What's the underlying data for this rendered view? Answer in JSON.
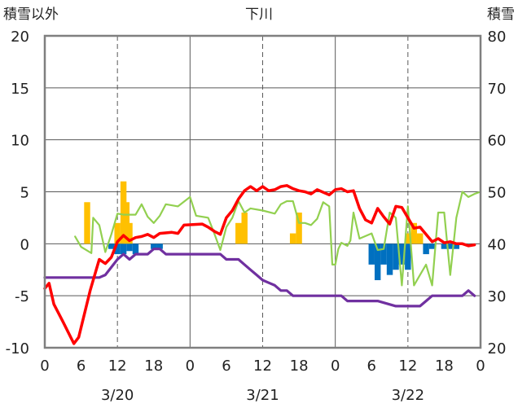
{
  "chart_data": {
    "type": "line",
    "title": "下川",
    "left_axis_label": "積雪以外",
    "right_axis_label": "積雪",
    "y_left": {
      "min": -10,
      "max": 20,
      "ticks": [
        20,
        15,
        10,
        5,
        0,
        -5,
        -10
      ]
    },
    "y_right": {
      "min": 20,
      "max": 80,
      "ticks": [
        80,
        70,
        60,
        50,
        40,
        30,
        20
      ]
    },
    "x": {
      "min": 0,
      "max": 72
    },
    "hour_ticks": [
      {
        "x": 0,
        "label": "0"
      },
      {
        "x": 6,
        "label": "6"
      },
      {
        "x": 12,
        "label": "12"
      },
      {
        "x": 18,
        "label": "18"
      },
      {
        "x": 24,
        "label": "0"
      },
      {
        "x": 30,
        "label": "6"
      },
      {
        "x": 36,
        "label": "12"
      },
      {
        "x": 42,
        "label": "18"
      },
      {
        "x": 48,
        "label": "0"
      },
      {
        "x": 54,
        "label": "6"
      },
      {
        "x": 60,
        "label": "12"
      },
      {
        "x": 66,
        "label": "18"
      },
      {
        "x": 72,
        "label": "0"
      }
    ],
    "date_labels": [
      {
        "x": 12,
        "label": "3/20"
      },
      {
        "x": 36,
        "label": "3/21"
      },
      {
        "x": 60,
        "label": "3/22"
      }
    ],
    "midnight_lines": [
      24,
      48
    ],
    "noon_lines": [
      12,
      36,
      60
    ],
    "snow_depth": [
      [
        0,
        33.5
      ],
      [
        3,
        33.5
      ],
      [
        6,
        33.5
      ],
      [
        9,
        33.5
      ],
      [
        10,
        34
      ],
      [
        11,
        35.5
      ],
      [
        12,
        37
      ],
      [
        13,
        38
      ],
      [
        14,
        37
      ],
      [
        15,
        38
      ],
      [
        16,
        38
      ],
      [
        17,
        38
      ],
      [
        18,
        39
      ],
      [
        19,
        39
      ],
      [
        20,
        38
      ],
      [
        22,
        38
      ],
      [
        24,
        38
      ],
      [
        27,
        38
      ],
      [
        29,
        38
      ],
      [
        30,
        37
      ],
      [
        32,
        37
      ],
      [
        33,
        36
      ],
      [
        34,
        35
      ],
      [
        35,
        34
      ],
      [
        36,
        33
      ],
      [
        37,
        32.5
      ],
      [
        38,
        32
      ],
      [
        39,
        31
      ],
      [
        40,
        31
      ],
      [
        41,
        30
      ],
      [
        42,
        30
      ],
      [
        45,
        30
      ],
      [
        48,
        30
      ],
      [
        49,
        30
      ],
      [
        50,
        29
      ],
      [
        55,
        29
      ],
      [
        58,
        28
      ],
      [
        60,
        28
      ],
      [
        62,
        28
      ],
      [
        63,
        29
      ],
      [
        64,
        30
      ],
      [
        67,
        30
      ],
      [
        69,
        30
      ],
      [
        70,
        31
      ],
      [
        71,
        30
      ]
    ],
    "temperature": [
      [
        0,
        -4.3
      ],
      [
        0.7,
        -3.8
      ],
      [
        1.5,
        -5.8
      ],
      [
        3,
        -7.5
      ],
      [
        4.8,
        -9.6
      ],
      [
        5.6,
        -9
      ],
      [
        7.5,
        -4.5
      ],
      [
        9,
        -1.5
      ],
      [
        10,
        -1.9
      ],
      [
        11,
        -1.3
      ],
      [
        12,
        0.2
      ],
      [
        13,
        0.8
      ],
      [
        14,
        0.3
      ],
      [
        15,
        0.6
      ],
      [
        16,
        0.7
      ],
      [
        17,
        0.9
      ],
      [
        18,
        0.6
      ],
      [
        19,
        1
      ],
      [
        21,
        1.1
      ],
      [
        22,
        1
      ],
      [
        23,
        1.8
      ],
      [
        26,
        1.9
      ],
      [
        27,
        1.6
      ],
      [
        28,
        1.2
      ],
      [
        29,
        0.9
      ],
      [
        30,
        2.5
      ],
      [
        31,
        3.2
      ],
      [
        32,
        4.3
      ],
      [
        33,
        5.1
      ],
      [
        34,
        5.5
      ],
      [
        35,
        5.1
      ],
      [
        36,
        5.5
      ],
      [
        37,
        5.1
      ],
      [
        38,
        5.2
      ],
      [
        39,
        5.5
      ],
      [
        40,
        5.6
      ],
      [
        41,
        5.3
      ],
      [
        42,
        5.1
      ],
      [
        43,
        5
      ],
      [
        44,
        4.8
      ],
      [
        45,
        5.2
      ],
      [
        47,
        4.7
      ],
      [
        48,
        5.2
      ],
      [
        49,
        5.3
      ],
      [
        50,
        5
      ],
      [
        51,
        5.1
      ],
      [
        52,
        3.4
      ],
      [
        53,
        2.3
      ],
      [
        54,
        2
      ],
      [
        55,
        3.4
      ],
      [
        56,
        2.6
      ],
      [
        57,
        1.9
      ],
      [
        58,
        3.6
      ],
      [
        59,
        3.5
      ],
      [
        60,
        2.5
      ],
      [
        61,
        1.5
      ],
      [
        62,
        1.6
      ],
      [
        63,
        0.9
      ],
      [
        64,
        0.2
      ],
      [
        65,
        0.5
      ],
      [
        66,
        0.1
      ],
      [
        67,
        0.2
      ],
      [
        68,
        0
      ],
      [
        69,
        0
      ],
      [
        70,
        -0.2
      ],
      [
        71,
        -0.1
      ]
    ],
    "wind": [
      [
        5,
        0.7
      ],
      [
        6,
        -0.3
      ],
      [
        7.7,
        -0.9
      ],
      [
        8,
        2.5
      ],
      [
        9,
        1.8
      ],
      [
        10,
        -0.8
      ],
      [
        11,
        0.9
      ],
      [
        12,
        2.9
      ],
      [
        13,
        2.8
      ],
      [
        15,
        2.8
      ],
      [
        16,
        3.8
      ],
      [
        17,
        2.6
      ],
      [
        18,
        2
      ],
      [
        19,
        2.7
      ],
      [
        20,
        3.8
      ],
      [
        22,
        3.6
      ],
      [
        24,
        4.5
      ],
      [
        25,
        2.7
      ],
      [
        27,
        2.5
      ],
      [
        28,
        1
      ],
      [
        29,
        -0.6
      ],
      [
        30,
        1.6
      ],
      [
        31,
        2.5
      ],
      [
        32,
        4.1
      ],
      [
        33,
        3
      ],
      [
        34,
        3.4
      ],
      [
        36,
        3.2
      ],
      [
        38,
        2.9
      ],
      [
        39,
        3.8
      ],
      [
        40,
        4.1
      ],
      [
        41,
        4.1
      ],
      [
        42,
        2
      ],
      [
        43,
        2
      ],
      [
        44,
        1.8
      ],
      [
        45,
        2.4
      ],
      [
        46,
        4
      ],
      [
        47,
        3.6
      ],
      [
        47.5,
        -2
      ],
      [
        48,
        -2
      ],
      [
        48.5,
        -0.5
      ],
      [
        49,
        0.1
      ],
      [
        50,
        -0.2
      ],
      [
        50.5,
        0.3
      ],
      [
        51,
        3
      ],
      [
        52,
        0.5
      ],
      [
        54,
        1
      ],
      [
        55,
        -0.6
      ],
      [
        56,
        -0.5
      ],
      [
        57,
        3
      ],
      [
        58,
        2.5
      ],
      [
        59,
        -4
      ],
      [
        60,
        3.6
      ],
      [
        61,
        -4
      ],
      [
        62,
        -3
      ],
      [
        63,
        -2
      ],
      [
        64,
        -4
      ],
      [
        65,
        3
      ],
      [
        66,
        3
      ],
      [
        67,
        -3
      ],
      [
        68,
        2.5
      ],
      [
        69,
        5
      ],
      [
        70,
        4.5
      ],
      [
        71,
        4.8
      ],
      [
        72,
        5
      ]
    ],
    "precip_bars": [
      {
        "x": 7,
        "value": 4
      },
      {
        "x": 12,
        "value": 2
      },
      {
        "x": 13,
        "value": 6
      },
      {
        "x": 13.5,
        "value": 4
      },
      {
        "x": 14,
        "value": 2
      },
      {
        "x": 32,
        "value": 2
      },
      {
        "x": 33,
        "value": 3
      },
      {
        "x": 41,
        "value": 1
      },
      {
        "x": 42,
        "value": 3
      },
      {
        "x": 60,
        "value": 1
      },
      {
        "x": 61,
        "value": 2
      },
      {
        "x": 62,
        "value": 1
      }
    ],
    "snow_change_bars": [
      {
        "x": 11,
        "value": -0.5
      },
      {
        "x": 12,
        "value": -1
      },
      {
        "x": 13,
        "value": -1
      },
      {
        "x": 14,
        "value": -0.7
      },
      {
        "x": 15,
        "value": -1
      },
      {
        "x": 18,
        "value": -0.5
      },
      {
        "x": 19,
        "value": -0.5
      },
      {
        "x": 54,
        "value": -2
      },
      {
        "x": 55,
        "value": -3.5
      },
      {
        "x": 56,
        "value": -2
      },
      {
        "x": 57,
        "value": -3
      },
      {
        "x": 58,
        "value": -2.5
      },
      {
        "x": 59,
        "value": -2
      },
      {
        "x": 60,
        "value": -2.5
      },
      {
        "x": 63,
        "value": -1
      },
      {
        "x": 64,
        "value": -0.5
      },
      {
        "x": 66,
        "value": -0.5
      },
      {
        "x": 67,
        "value": -0.5
      },
      {
        "x": 68,
        "value": -0.5
      }
    ],
    "colors": {
      "temperature": "#ff0000",
      "snow_depth": "#7030a0",
      "wind": "#92d050",
      "precip": "#ffc000",
      "snow_change": "#0070c0",
      "frame": "#7f7f7f",
      "grid": "#595959"
    }
  }
}
